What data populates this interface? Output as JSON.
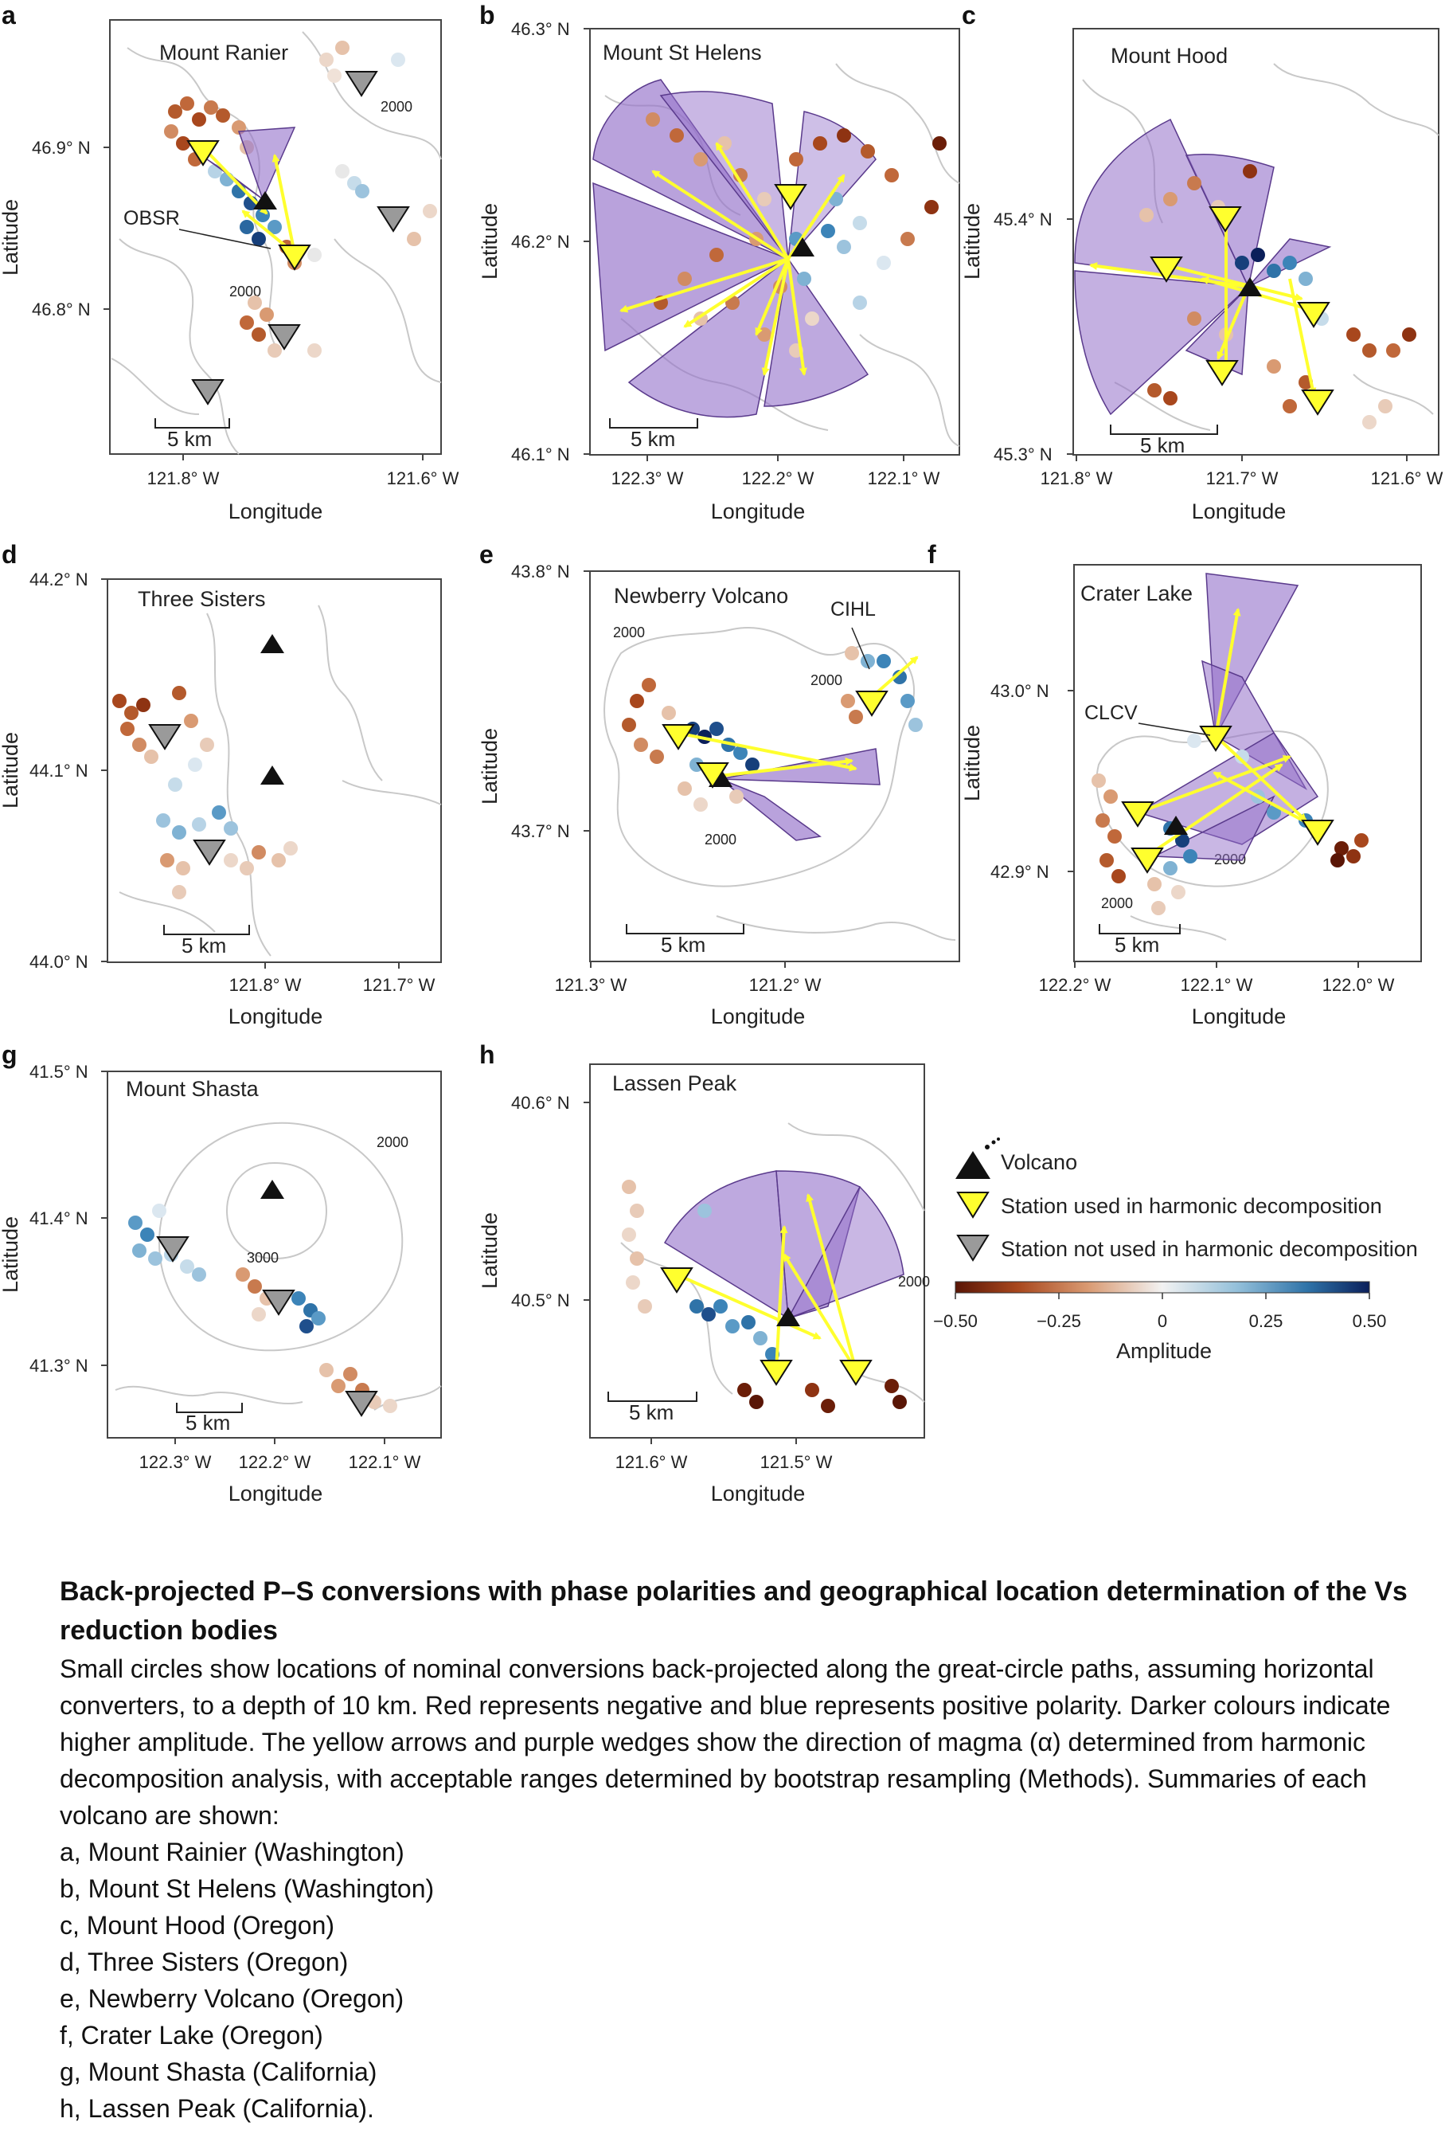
{
  "figure": {
    "panels": [
      {
        "letter": "a",
        "name": "Mount Ranier",
        "y_ticks": [
          "46.9° N",
          "46.8° N"
        ],
        "x_ticks": [
          "121.8° W",
          "121.6° W"
        ],
        "xlabel": "Longitude",
        "ylabel": "Latitude",
        "scale": "5 km",
        "callouts": [
          "OBSR"
        ],
        "contours": [
          "2000",
          "2000"
        ]
      },
      {
        "letter": "b",
        "name": "Mount St Helens",
        "y_ticks": [
          "46.3° N",
          "46.2° N",
          "46.1° N"
        ],
        "x_ticks": [
          "122.3° W",
          "122.2° W",
          "122.1° W"
        ],
        "xlabel": "Longitude",
        "ylabel": "Latitude",
        "scale": "5 km",
        "callouts": [],
        "contours": []
      },
      {
        "letter": "c",
        "name": "Mount Hood",
        "y_ticks": [
          "45.4° N",
          "45.3° N"
        ],
        "x_ticks": [
          "121.8° W",
          "121.7° W",
          "121.6° W"
        ],
        "xlabel": "Longitude",
        "ylabel": "Latitude",
        "scale": "5 km",
        "callouts": [],
        "contours": []
      },
      {
        "letter": "d",
        "name": "Three Sisters",
        "y_ticks": [
          "44.2° N",
          "44.1° N",
          "44.0° N"
        ],
        "x_ticks": [
          "121.8° W",
          "121.7° W"
        ],
        "xlabel": "Longitude",
        "ylabel": "Latitude",
        "scale": "5 km",
        "callouts": [],
        "contours": []
      },
      {
        "letter": "e",
        "name": "Newberry Volcano",
        "y_ticks": [
          "43.8° N",
          "43.7° N"
        ],
        "x_ticks": [
          "121.3° W",
          "121.2° W"
        ],
        "xlabel": "Longitude",
        "ylabel": "Latitude",
        "scale": "5 km",
        "callouts": [
          "CIHL"
        ],
        "contours": [
          "2000",
          "2000",
          "2000"
        ]
      },
      {
        "letter": "f",
        "name": "Crater Lake",
        "y_ticks": [
          "43.0° N",
          "42.9° N"
        ],
        "x_ticks": [
          "122.2° W",
          "122.1° W",
          "122.0° W"
        ],
        "xlabel": "Longitude",
        "ylabel": "Latitude",
        "scale": "5 km",
        "callouts": [
          "CLCV"
        ],
        "contours": [
          "2000",
          "2000"
        ]
      },
      {
        "letter": "g",
        "name": "Mount Shasta",
        "y_ticks": [
          "41.5° N",
          "41.4° N",
          "41.3° N"
        ],
        "x_ticks": [
          "122.3° W",
          "122.2° W",
          "122.1° W"
        ],
        "xlabel": "Longitude",
        "ylabel": "Latitude",
        "scale": "5 km",
        "callouts": [],
        "contours": [
          "2000",
          "3000"
        ]
      },
      {
        "letter": "h",
        "name": "Lassen Peak",
        "y_ticks": [
          "40.6° N",
          "40.5° N"
        ],
        "x_ticks": [
          "121.6° W",
          "121.5° W"
        ],
        "xlabel": "Longitude",
        "ylabel": "Latitude",
        "scale": "5 km",
        "callouts": [],
        "contours": [
          "2000"
        ]
      }
    ],
    "legend": {
      "volcano": "Volcano",
      "used": "Station used in harmonic decomposition",
      "not_used": "Station not used in harmonic decomposition",
      "colorbar_label": "Amplitude",
      "colorbar_ticks": [
        "−0.50",
        "−0.25",
        "0",
        "0.25",
        "0.50"
      ],
      "colorbar_range": [
        -0.5,
        0.5
      ],
      "colors": {
        "negative": "#6b1e08",
        "neutral": "#f2f2f2",
        "positive": "#0d2a6b",
        "wedge": "#9370c9",
        "arrow": "#ffff2e",
        "station_unused": "#9a9a9a"
      }
    }
  },
  "caption": {
    "title": "Back-projected P–S conversions with phase polarities and geographical location determination of the Vs reduction bodies",
    "body": "Small circles show locations of nominal conversions back-projected along the great-circle paths, assuming horizontal converters, to a depth of 10 km. Red represents negative and blue represents positive polarity. Darker colours indicate higher amplitude. The yellow arrows and purple wedges show the direction of magma (α) determined from harmonic decomposition analysis, with acceptable ranges determined by bootstrap resampling (Methods). Summaries of each volcano are shown:",
    "items": [
      "a, Mount Rainier (Washington)",
      "b, Mount St Helens (Washington)",
      "c, Mount Hood (Oregon)",
      "d, Three Sisters (Oregon)",
      "e, Newberry Volcano (Oregon)",
      "f, Crater Lake (Oregon)",
      "g, Mount Shasta (California)",
      "h, Lassen Peak (California)."
    ]
  }
}
